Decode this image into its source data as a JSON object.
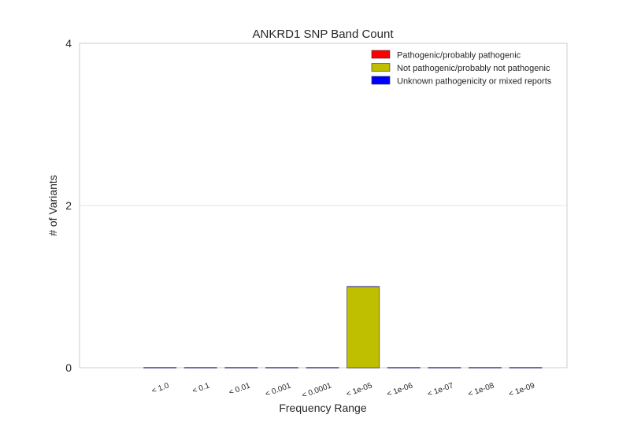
{
  "chart_data": {
    "type": "bar",
    "title": "ANKRD1 SNP Band Count",
    "xlabel": "Frequency Range",
    "ylabel": "# of Variants",
    "categories": [
      "< 1.0",
      "< 0.1",
      "< 0.01",
      "< 0.001",
      "< 0.0001",
      "< 1e-05",
      "< 1e-06",
      "< 1e-07",
      "< 1e-08",
      "< 1e-09"
    ],
    "ylim": [
      0,
      4
    ],
    "yticks": [
      "0",
      "2",
      "4"
    ],
    "grid": true,
    "legend_position": "top-right",
    "stacked": true,
    "series": [
      {
        "name": "Pathogenic/probably pathogenic",
        "color": "#ff0000",
        "values": [
          0,
          0,
          0,
          0,
          0,
          0,
          0,
          0,
          0,
          0
        ]
      },
      {
        "name": "Not pathogenic/probably not pathogenic",
        "color": "#bfbf00",
        "values": [
          0,
          0,
          0,
          0,
          0,
          1,
          0,
          0,
          0,
          0
        ]
      },
      {
        "name": "Unknown pathogenicity or mixed reports",
        "color": "#0000ff",
        "values": [
          0,
          0,
          0,
          0,
          0,
          0,
          0,
          0,
          0,
          0
        ]
      }
    ]
  }
}
